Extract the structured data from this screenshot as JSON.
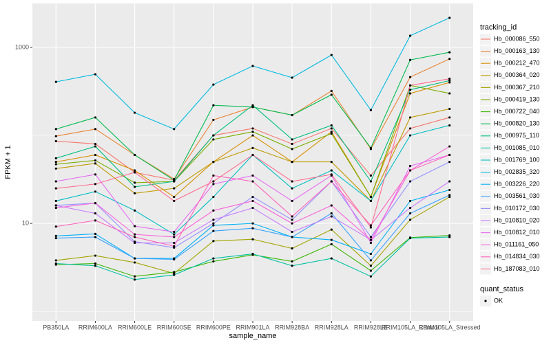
{
  "chart_data": {
    "type": "line",
    "x_label": "sample_name",
    "y_label": "FPKM + 1",
    "log_y": true,
    "grid": true,
    "point_color": "#000000",
    "legend_title": "tracking_id",
    "shape_legend": {
      "title": "quant_status",
      "labels": [
        "OK"
      ]
    },
    "categories": [
      "PB350LA",
      "RRIM600LA",
      "RRIM600LE",
      "RRIM600SE",
      "RRIM600PE",
      "RRIM901LA",
      "RRIM928BA",
      "RRIM928LA",
      "RRIM928LE",
      "RRIM105LA_Control",
      "RRIM105LA_Stressed"
    ],
    "ylim": [
      0.78,
      3160
    ],
    "yticks": [
      10,
      1000
    ],
    "series": [
      {
        "name": "Hb_000086_550",
        "color": "#F8766D",
        "values": [
          86,
          80,
          38,
          31,
          100,
          120,
          80,
          120,
          35,
          120,
          160
        ]
      },
      {
        "name": "Hb_000163_130",
        "color": "#EA8331",
        "values": [
          98,
          118,
          60,
          32,
          150,
          210,
          170,
          320,
          70,
          460,
          740
        ]
      },
      {
        "name": "Hb_000212_470",
        "color": "#D89000",
        "values": [
          50,
          60,
          40,
          20,
          50,
          100,
          50,
          110,
          20,
          300,
          400
        ]
      },
      {
        "name": "Hb_000364_020",
        "color": "#C09B00",
        "values": [
          42,
          48,
          22,
          25,
          50,
          72,
          50,
          50,
          18,
          160,
          200
        ]
      },
      {
        "name": "Hb_000367_210",
        "color": "#A3A500",
        "values": [
          3.8,
          4.3,
          3.6,
          2.7,
          6.3,
          6.6,
          5.2,
          8.5,
          3.3,
          11,
          20
        ]
      },
      {
        "name": "Hb_000419_130",
        "color": "#7CAE00",
        "values": [
          47,
          52,
          29,
          30,
          90,
          110,
          70,
          105,
          20,
          370,
          300
        ]
      },
      {
        "name": "Hb_000722_040",
        "color": "#39B600",
        "values": [
          3.4,
          3.5,
          2.5,
          2.8,
          3.7,
          4.4,
          3.7,
          5.8,
          2.9,
          6.9,
          7.3
        ]
      },
      {
        "name": "Hb_000820_130",
        "color": "#00BB4E",
        "values": [
          118,
          160,
          60,
          31,
          220,
          210,
          170,
          290,
          72,
          720,
          880
        ]
      },
      {
        "name": "Hb_000975_110",
        "color": "#00BF7D",
        "values": [
          55,
          75,
          26,
          30,
          100,
          220,
          90,
          130,
          30,
          330,
          420
        ]
      },
      {
        "name": "Hb_001085_010",
        "color": "#00C1A3",
        "values": [
          3.5,
          3.3,
          2.3,
          2.6,
          4.0,
          4.5,
          3.3,
          4.0,
          2.5,
          6.8,
          7.0
        ]
      },
      {
        "name": "Hb_001769_100",
        "color": "#00BFC4",
        "values": [
          18,
          23,
          14,
          7.5,
          20,
          60,
          25,
          40,
          18,
          100,
          130
        ]
      },
      {
        "name": "Hb_002835_320",
        "color": "#00BAE0",
        "values": [
          406,
          495,
          181,
          118,
          378,
          615,
          453,
          820,
          194,
          1358,
          2168
        ]
      },
      {
        "name": "Hb_003226_220",
        "color": "#00B0F6",
        "values": [
          7.2,
          7.6,
          4.0,
          4.0,
          9.5,
          10,
          7.0,
          6.5,
          4.5,
          18,
          24
        ]
      },
      {
        "name": "Hb_003561_030",
        "color": "#35A2FF",
        "values": [
          6.8,
          7.0,
          4.0,
          3.9,
          8.2,
          8.8,
          7.0,
          13,
          3.8,
          13,
          21
        ]
      },
      {
        "name": "Hb_010172_030",
        "color": "#9590FF",
        "values": [
          16,
          17,
          6.2,
          5.3,
          10,
          20,
          11,
          30,
          7,
          30,
          50
        ]
      },
      {
        "name": "Hb_010810_020",
        "color": "#C77CFF",
        "values": [
          16,
          13,
          6.0,
          6.0,
          11,
          15,
          8.0,
          12,
          6.5,
          15,
          30
        ]
      },
      {
        "name": "Hb_010812_010",
        "color": "#E76BF3",
        "values": [
          30,
          36,
          9.3,
          8.0,
          28,
          35,
          18,
          35,
          6,
          45,
          60
        ]
      },
      {
        "name": "Hb_011161_050",
        "color": "#FA62DB",
        "values": [
          15,
          17,
          7.5,
          7.0,
          14,
          18,
          10,
          16,
          6.5,
          40,
          75
        ]
      },
      {
        "name": "Hb_014834_030",
        "color": "#FF62BC",
        "values": [
          9.2,
          10.8,
          7.0,
          5.5,
          35,
          30,
          12,
          30,
          9.5,
          40,
          60
        ]
      },
      {
        "name": "Hb_187083_010",
        "color": "#FF6C91",
        "values": [
          25,
          28,
          38,
          18,
          30,
          60,
          30,
          36,
          9,
          370,
          440
        ]
      }
    ]
  }
}
